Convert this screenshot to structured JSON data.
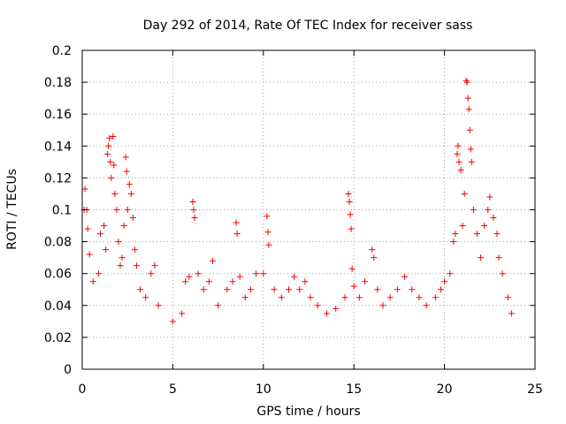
{
  "chart_data": {
    "type": "scatter",
    "title": "Day 292 of 2014, Rate Of TEC Index for receiver sass",
    "xlabel": "GPS time / hours",
    "ylabel": "ROTI / TECUs",
    "xlim": [
      0,
      25
    ],
    "ylim": [
      0,
      0.2
    ],
    "x_ticks": [
      "0",
      "5",
      "10",
      "15",
      "20",
      "25"
    ],
    "y_ticks": [
      "0",
      "0.02",
      "0.04",
      "0.06",
      "0.08",
      "0.1",
      "0.12",
      "0.14",
      "0.16",
      "0.18",
      "0.2"
    ],
    "x_tick_values": [
      0,
      5,
      10,
      15,
      20,
      25
    ],
    "y_tick_values": [
      0,
      0.02,
      0.04,
      0.06,
      0.08,
      0.1,
      0.12,
      0.14,
      0.16,
      0.18,
      0.2
    ],
    "grid": true,
    "marker": "plus",
    "color": "#ff0000",
    "series": [
      {
        "values_xy": [
          [
            0.1,
            0.1
          ],
          [
            0.15,
            0.113
          ],
          [
            0.25,
            0.1
          ],
          [
            0.3,
            0.088
          ],
          [
            0.4,
            0.072
          ],
          [
            0.6,
            0.055
          ],
          [
            0.9,
            0.06
          ],
          [
            1.0,
            0.085
          ],
          [
            1.2,
            0.09
          ],
          [
            1.3,
            0.075
          ],
          [
            1.4,
            0.135
          ],
          [
            1.45,
            0.14
          ],
          [
            1.5,
            0.145
          ],
          [
            1.55,
            0.13
          ],
          [
            1.6,
            0.12
          ],
          [
            1.7,
            0.146
          ],
          [
            1.75,
            0.128
          ],
          [
            1.8,
            0.11
          ],
          [
            1.9,
            0.1
          ],
          [
            2.0,
            0.08
          ],
          [
            2.1,
            0.065
          ],
          [
            2.2,
            0.07
          ],
          [
            2.3,
            0.09
          ],
          [
            2.4,
            0.133
          ],
          [
            2.45,
            0.124
          ],
          [
            2.5,
            0.1
          ],
          [
            2.6,
            0.116
          ],
          [
            2.7,
            0.11
          ],
          [
            2.8,
            0.095
          ],
          [
            2.9,
            0.075
          ],
          [
            3.0,
            0.065
          ],
          [
            3.2,
            0.05
          ],
          [
            3.5,
            0.045
          ],
          [
            3.8,
            0.06
          ],
          [
            4.0,
            0.065
          ],
          [
            4.2,
            0.04
          ],
          [
            5.0,
            0.03
          ],
          [
            5.5,
            0.035
          ],
          [
            5.7,
            0.055
          ],
          [
            5.9,
            0.058
          ],
          [
            6.1,
            0.105
          ],
          [
            6.15,
            0.1
          ],
          [
            6.2,
            0.095
          ],
          [
            6.4,
            0.06
          ],
          [
            6.7,
            0.05
          ],
          [
            7.0,
            0.055
          ],
          [
            7.2,
            0.068
          ],
          [
            7.5,
            0.04
          ],
          [
            8.0,
            0.05
          ],
          [
            8.3,
            0.055
          ],
          [
            8.5,
            0.092
          ],
          [
            8.55,
            0.085
          ],
          [
            8.7,
            0.058
          ],
          [
            9.0,
            0.045
          ],
          [
            9.3,
            0.05
          ],
          [
            9.6,
            0.06
          ],
          [
            10.0,
            0.06
          ],
          [
            10.2,
            0.096
          ],
          [
            10.25,
            0.086
          ],
          [
            10.3,
            0.078
          ],
          [
            10.6,
            0.05
          ],
          [
            11.0,
            0.045
          ],
          [
            11.4,
            0.05
          ],
          [
            11.7,
            0.058
          ],
          [
            12.0,
            0.05
          ],
          [
            12.3,
            0.055
          ],
          [
            12.6,
            0.045
          ],
          [
            13.0,
            0.04
          ],
          [
            13.5,
            0.035
          ],
          [
            14.0,
            0.038
          ],
          [
            14.5,
            0.045
          ],
          [
            14.7,
            0.11
          ],
          [
            14.75,
            0.105
          ],
          [
            14.8,
            0.097
          ],
          [
            14.85,
            0.088
          ],
          [
            14.9,
            0.063
          ],
          [
            15.0,
            0.052
          ],
          [
            15.3,
            0.045
          ],
          [
            15.6,
            0.055
          ],
          [
            16.0,
            0.075
          ],
          [
            16.1,
            0.07
          ],
          [
            16.3,
            0.05
          ],
          [
            16.6,
            0.04
          ],
          [
            17.0,
            0.045
          ],
          [
            17.4,
            0.05
          ],
          [
            17.8,
            0.058
          ],
          [
            18.2,
            0.05
          ],
          [
            18.6,
            0.045
          ],
          [
            19.0,
            0.04
          ],
          [
            19.5,
            0.045
          ],
          [
            19.8,
            0.05
          ],
          [
            20.0,
            0.055
          ],
          [
            20.3,
            0.06
          ],
          [
            20.5,
            0.08
          ],
          [
            20.6,
            0.085
          ],
          [
            20.7,
            0.135
          ],
          [
            20.75,
            0.14
          ],
          [
            20.8,
            0.13
          ],
          [
            20.9,
            0.125
          ],
          [
            21.0,
            0.09
          ],
          [
            21.1,
            0.11
          ],
          [
            21.2,
            0.181
          ],
          [
            21.25,
            0.18
          ],
          [
            21.3,
            0.17
          ],
          [
            21.35,
            0.163
          ],
          [
            21.4,
            0.15
          ],
          [
            21.45,
            0.138
          ],
          [
            21.5,
            0.13
          ],
          [
            21.6,
            0.1
          ],
          [
            21.8,
            0.085
          ],
          [
            22.0,
            0.07
          ],
          [
            22.2,
            0.09
          ],
          [
            22.4,
            0.1
          ],
          [
            22.5,
            0.108
          ],
          [
            22.7,
            0.095
          ],
          [
            22.9,
            0.085
          ],
          [
            23.0,
            0.07
          ],
          [
            23.2,
            0.06
          ],
          [
            23.5,
            0.045
          ],
          [
            23.7,
            0.035
          ]
        ]
      }
    ]
  }
}
